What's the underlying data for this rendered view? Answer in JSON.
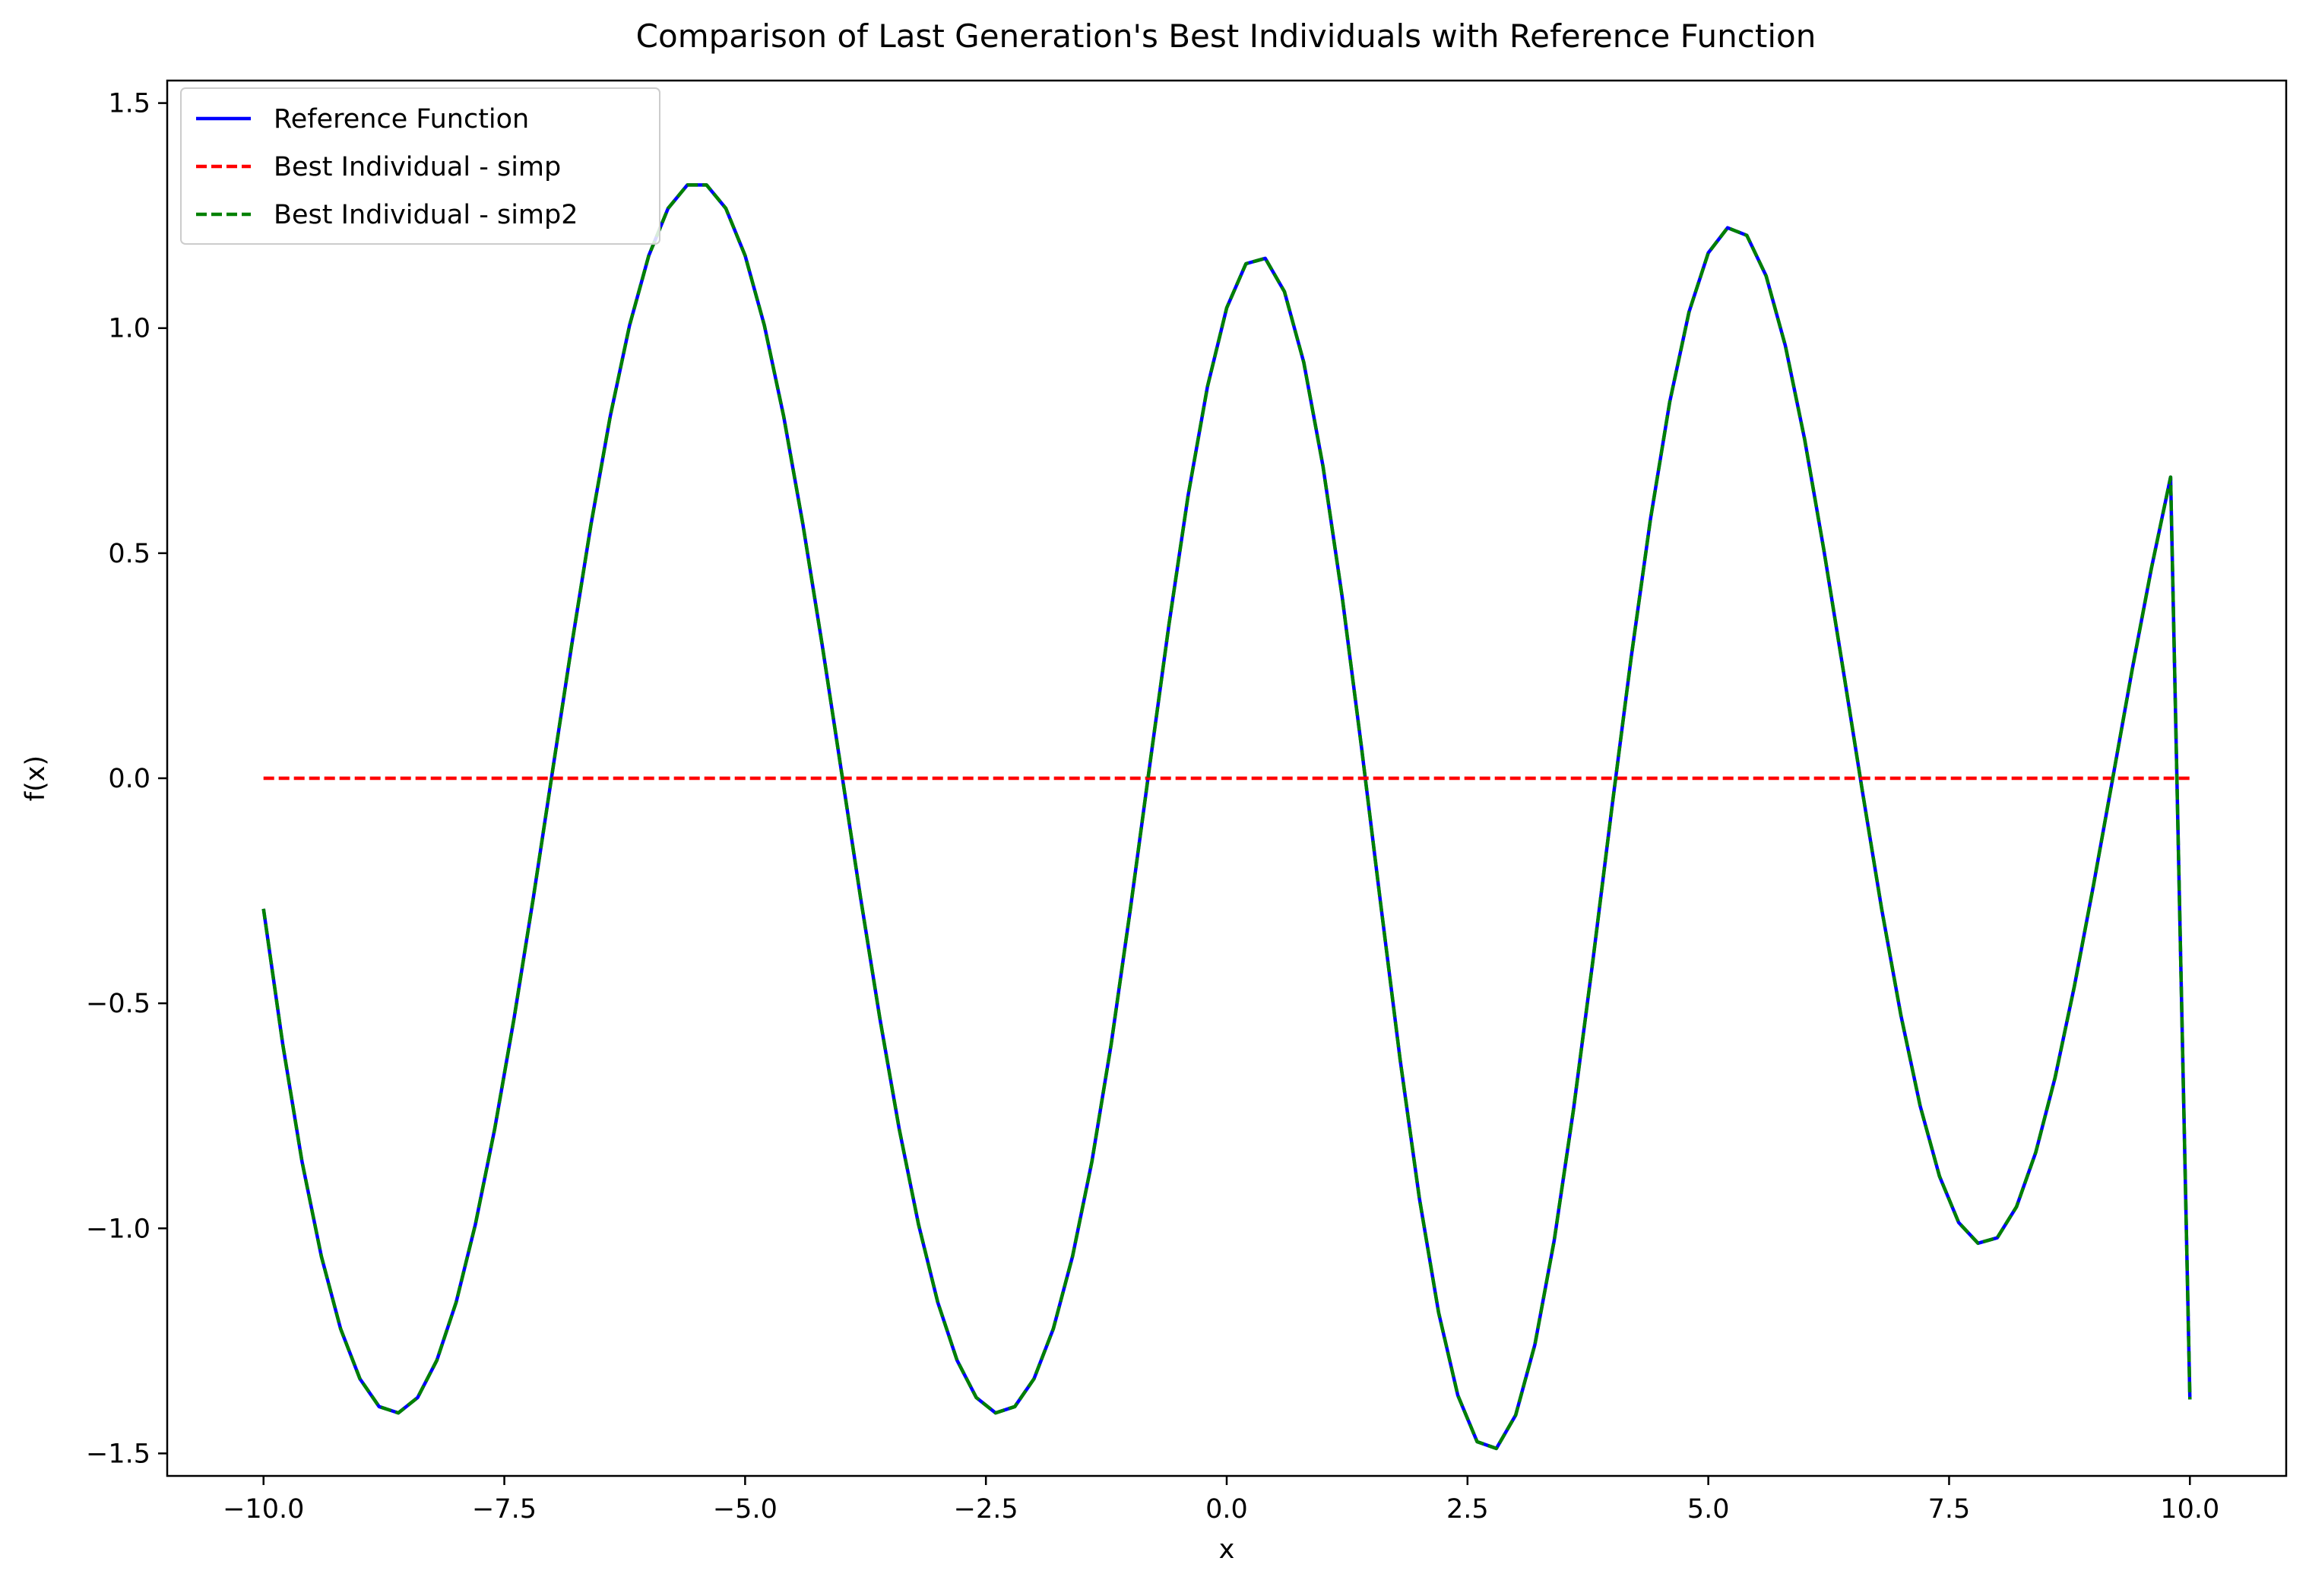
{
  "chart_data": {
    "type": "line",
    "title": "Comparison of Last Generation's Best Individuals with Reference Function",
    "xlabel": "x",
    "ylabel": "f(x)",
    "xlim": [
      -11.0,
      11.0
    ],
    "ylim": [
      -1.55,
      1.55
    ],
    "xticks": [
      -10.0,
      -7.5,
      -5.0,
      -2.5,
      0.0,
      2.5,
      5.0,
      7.5,
      10.0
    ],
    "xtick_labels": [
      "−10.0",
      "−7.5",
      "−5.0",
      "−2.5",
      "0.0",
      "2.5",
      "5.0",
      "7.5",
      "10.0"
    ],
    "yticks": [
      -1.5,
      -1.0,
      -0.5,
      0.0,
      0.5,
      1.0,
      1.5
    ],
    "ytick_labels": [
      "−1.5",
      "−1.0",
      "−0.5",
      "0.0",
      "0.5",
      "1.0",
      "1.5"
    ],
    "grid": false,
    "legend_position": "top-left",
    "series": [
      {
        "name": "Reference Function",
        "color": "#0000ff",
        "style": "solid",
        "x": [
          -10.0,
          -9.8,
          -9.6,
          -9.4,
          -9.2,
          -9.0,
          -8.8,
          -8.6,
          -8.4,
          -8.2,
          -8.0,
          -7.8,
          -7.6,
          -7.4,
          -7.2,
          -7.0,
          -6.8,
          -6.6,
          -6.4,
          -6.2,
          -6.0,
          -5.8,
          -5.6,
          -5.4,
          -5.2,
          -5.0,
          -4.8,
          -4.6,
          -4.4,
          -4.2,
          -4.0,
          -3.8,
          -3.6,
          -3.4,
          -3.2,
          -3.0,
          -2.8,
          -2.6,
          -2.4,
          -2.2,
          -2.0,
          -1.8,
          -1.6,
          -1.4,
          -1.2,
          -1.0,
          -0.8,
          -0.6,
          -0.4,
          -0.2,
          0.0,
          0.2,
          0.4,
          0.6,
          0.8,
          1.0,
          1.2,
          1.4,
          1.6,
          1.8,
          2.0,
          2.2,
          2.4,
          2.6,
          2.8,
          3.0,
          3.2,
          3.4,
          3.6,
          3.8,
          4.0,
          4.2,
          4.4,
          4.6,
          4.8,
          5.0,
          5.2,
          5.4,
          5.6,
          5.8,
          6.0,
          6.2,
          6.4,
          6.6,
          6.8,
          7.0,
          7.2,
          7.4,
          7.6,
          7.8,
          8.0,
          8.2,
          8.4,
          8.6,
          8.8,
          9.0,
          9.2,
          9.4,
          9.6,
          9.8,
          10.0
        ],
        "y": [
          -0.29,
          -0.592,
          -0.852,
          -1.062,
          -1.223,
          -1.334,
          -1.396,
          -1.41,
          -1.376,
          -1.293,
          -1.164,
          -0.991,
          -0.779,
          -0.535,
          -0.267,
          0.015,
          0.297,
          0.564,
          0.804,
          1.006,
          1.161,
          1.266,
          1.318,
          1.318,
          1.266,
          1.161,
          1.006,
          0.804,
          0.564,
          0.297,
          0.015,
          -0.267,
          -0.535,
          -0.779,
          -0.991,
          -1.164,
          -1.293,
          -1.376,
          -1.41,
          -1.396,
          -1.334,
          -1.223,
          -1.062,
          -0.852,
          -0.592,
          -0.29,
          0.027,
          0.341,
          0.629,
          0.87,
          1.045,
          1.143,
          1.155,
          1.081,
          0.924,
          0.693,
          0.401,
          0.068,
          -0.282,
          -0.624,
          -0.933,
          -1.187,
          -1.371,
          -1.474,
          -1.489,
          -1.415,
          -1.258,
          -1.027,
          -0.737,
          -0.408,
          -0.064,
          0.27,
          0.576,
          0.836,
          1.036,
          1.167,
          1.223,
          1.206,
          1.116,
          0.961,
          0.753,
          0.507,
          0.241,
          -0.029,
          -0.29,
          -0.527,
          -0.728,
          -0.884,
          -0.987,
          -1.033,
          -1.021,
          -0.952,
          -0.831,
          -0.665,
          -0.463,
          -0.237,
          0.001,
          0.24,
          0.466,
          0.669,
          -1.38
        ]
      },
      {
        "name": "Best Individual - simp",
        "color": "#ff0000",
        "style": "dashed",
        "x": [
          -10.0,
          10.0
        ],
        "y": [
          0.0,
          0.0
        ]
      },
      {
        "name": "Best Individual - simp2",
        "color": "#008000",
        "style": "dashed",
        "x": [
          -10.0,
          -9.8,
          -9.6,
          -9.4,
          -9.2,
          -9.0,
          -8.8,
          -8.6,
          -8.4,
          -8.2,
          -8.0,
          -7.8,
          -7.6,
          -7.4,
          -7.2,
          -7.0,
          -6.8,
          -6.6,
          -6.4,
          -6.2,
          -6.0,
          -5.8,
          -5.6,
          -5.4,
          -5.2,
          -5.0,
          -4.8,
          -4.6,
          -4.4,
          -4.2,
          -4.0,
          -3.8,
          -3.6,
          -3.4,
          -3.2,
          -3.0,
          -2.8,
          -2.6,
          -2.4,
          -2.2,
          -2.0,
          -1.8,
          -1.6,
          -1.4,
          -1.2,
          -1.0,
          -0.8,
          -0.6,
          -0.4,
          -0.2,
          0.0,
          0.2,
          0.4,
          0.6,
          0.8,
          1.0,
          1.2,
          1.4,
          1.6,
          1.8,
          2.0,
          2.2,
          2.4,
          2.6,
          2.8,
          3.0,
          3.2,
          3.4,
          3.6,
          3.8,
          4.0,
          4.2,
          4.4,
          4.6,
          4.8,
          5.0,
          5.2,
          5.4,
          5.6,
          5.8,
          6.0,
          6.2,
          6.4,
          6.6,
          6.8,
          7.0,
          7.2,
          7.4,
          7.6,
          7.8,
          8.0,
          8.2,
          8.4,
          8.6,
          8.8,
          9.0,
          9.2,
          9.4,
          9.6,
          9.8,
          10.0
        ],
        "y": [
          -0.29,
          -0.592,
          -0.852,
          -1.062,
          -1.223,
          -1.334,
          -1.396,
          -1.41,
          -1.376,
          -1.293,
          -1.164,
          -0.991,
          -0.779,
          -0.535,
          -0.267,
          0.015,
          0.297,
          0.564,
          0.804,
          1.006,
          1.161,
          1.266,
          1.318,
          1.318,
          1.266,
          1.161,
          1.006,
          0.804,
          0.564,
          0.297,
          0.015,
          -0.267,
          -0.535,
          -0.779,
          -0.991,
          -1.164,
          -1.293,
          -1.376,
          -1.41,
          -1.396,
          -1.334,
          -1.223,
          -1.062,
          -0.852,
          -0.592,
          -0.29,
          0.027,
          0.341,
          0.629,
          0.87,
          1.045,
          1.143,
          1.155,
          1.081,
          0.924,
          0.693,
          0.401,
          0.068,
          -0.282,
          -0.624,
          -0.933,
          -1.187,
          -1.371,
          -1.474,
          -1.489,
          -1.415,
          -1.258,
          -1.027,
          -0.737,
          -0.408,
          -0.064,
          0.27,
          0.576,
          0.836,
          1.036,
          1.167,
          1.223,
          1.206,
          1.116,
          0.961,
          0.753,
          0.507,
          0.241,
          -0.029,
          -0.29,
          -0.527,
          -0.728,
          -0.884,
          -0.987,
          -1.033,
          -1.021,
          -0.952,
          -0.831,
          -0.665,
          -0.463,
          -0.237,
          0.001,
          0.24,
          0.466,
          0.669,
          -1.38
        ]
      }
    ]
  }
}
